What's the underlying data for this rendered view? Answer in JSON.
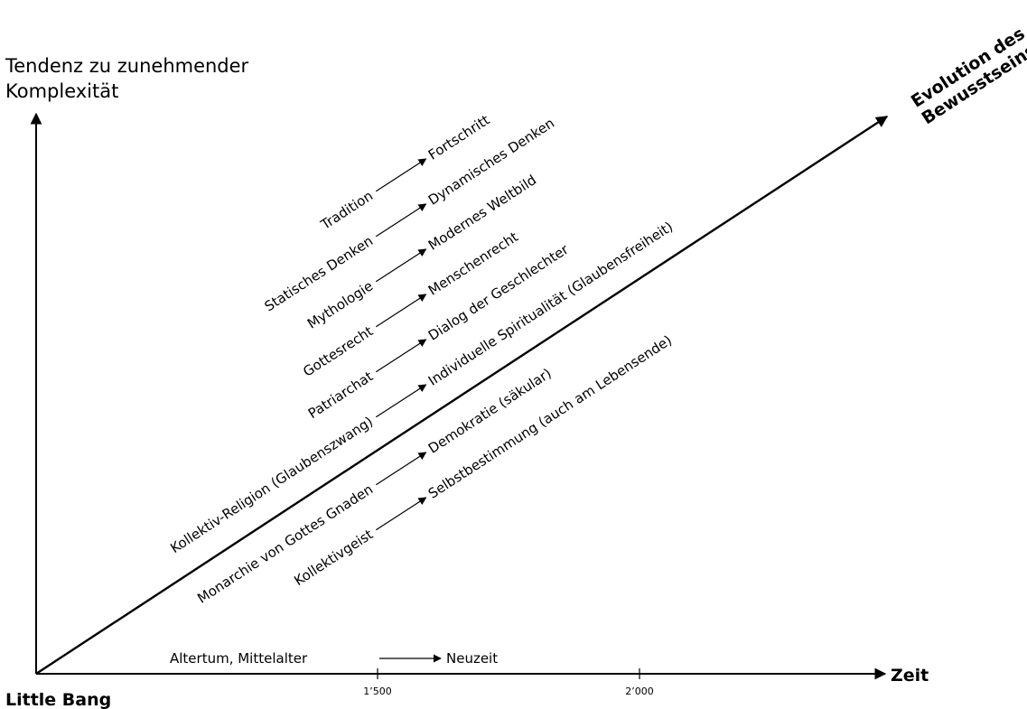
{
  "y_axis_title": [
    "Tendenz zu zunehmender",
    "Komplexität"
  ],
  "x_axis_title": "Zeit",
  "origin_label": "Little Bang",
  "diagonal_title": [
    "Evolution des",
    "Bewusstseins"
  ],
  "x_ticks": [
    "1’500",
    "2’000"
  ],
  "era": {
    "from": "Altertum, Mittelalter",
    "to": "Neuzeit"
  },
  "transitions": [
    {
      "from": "Tradition",
      "to": "Fortschritt"
    },
    {
      "from": "Statisches Denken",
      "to": "Dynamisches Denken"
    },
    {
      "from": "Mythologie",
      "to": "Modernes Weltbild"
    },
    {
      "from": "Gottesrecht",
      "to": "Menschenrecht"
    },
    {
      "from": "Patriarchat",
      "to": "Dialog der Geschlechter"
    },
    {
      "from": "Kollektiv-Religion (Glaubenszwang)",
      "to": "Individuelle Spiritualität (Glaubensfreiheit)"
    },
    {
      "from": "Monarchie von Gottes Gnaden",
      "to": "Demokratie (säkular)"
    },
    {
      "from": "Kollektivgeist",
      "to": "Selbstbestimmung (auch am Lebensende)"
    }
  ]
}
